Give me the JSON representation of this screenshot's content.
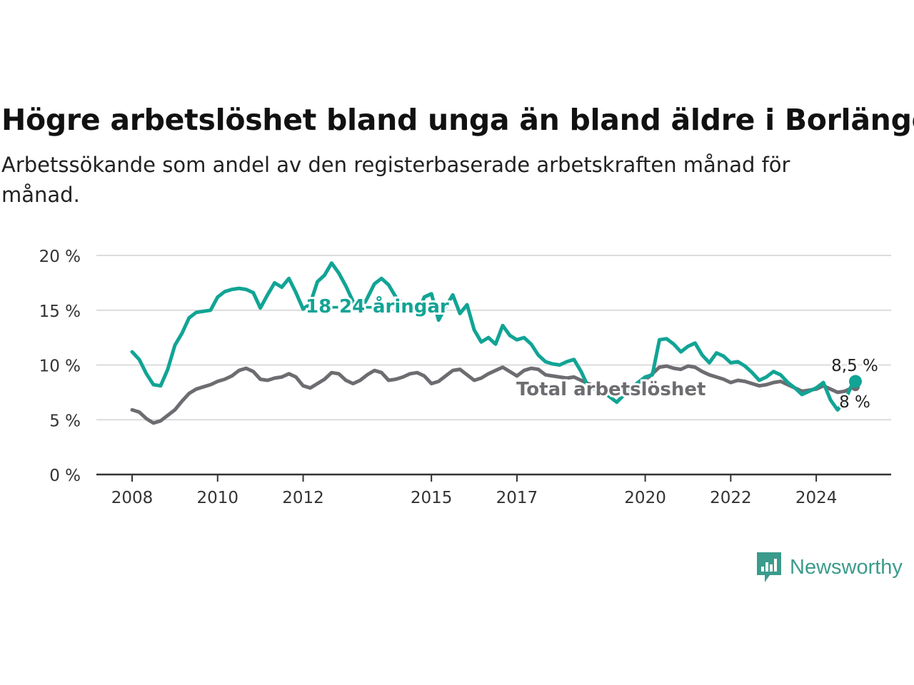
{
  "header": {
    "title": "Högre arbetslöshet bland unga än bland äldre i Borlänge",
    "subtitle": "Arbetssökande som andel av den registerbaserade arbetskraften månad för månad."
  },
  "brand": {
    "name": "Newsworthy",
    "icon": "newsworthy-logo-icon",
    "color": "#3b9b8c"
  },
  "chart_data": {
    "type": "line",
    "title": "Högre arbetslöshet bland unga än bland äldre i Borlänge",
    "subtitle": "Arbetssökande som andel av den registerbaserade arbetskraften månad för månad.",
    "xlabel": "",
    "ylabel": "",
    "x_ticks": [
      "2008",
      "2010",
      "2012",
      "2015",
      "2017",
      "2020",
      "2022",
      "2024"
    ],
    "y_ticks": [
      "0 %",
      "5 %",
      "10 %",
      "15 %",
      "20 %"
    ],
    "ylim": [
      0,
      20
    ],
    "xlim": [
      "2008-01",
      "2024-12"
    ],
    "grid": "horizontal",
    "legend": "none (direct labels)",
    "series": [
      {
        "name": "18-24-åringar",
        "color": "#11a495",
        "end_label": "8,5 %",
        "points": [
          [
            "2008-01",
            11.2
          ],
          [
            "2008-03",
            10.5
          ],
          [
            "2008-05",
            9.2
          ],
          [
            "2008-07",
            8.2
          ],
          [
            "2008-09",
            8.1
          ],
          [
            "2008-11",
            9.6
          ],
          [
            "2009-01",
            11.8
          ],
          [
            "2009-03",
            12.9
          ],
          [
            "2009-05",
            14.3
          ],
          [
            "2009-07",
            14.8
          ],
          [
            "2009-09",
            14.9
          ],
          [
            "2009-11",
            15.0
          ],
          [
            "2010-01",
            16.2
          ],
          [
            "2010-03",
            16.7
          ],
          [
            "2010-05",
            16.9
          ],
          [
            "2010-07",
            17.0
          ],
          [
            "2010-09",
            16.9
          ],
          [
            "2010-11",
            16.6
          ],
          [
            "2011-01",
            15.2
          ],
          [
            "2011-03",
            16.4
          ],
          [
            "2011-05",
            17.5
          ],
          [
            "2011-07",
            17.1
          ],
          [
            "2011-09",
            17.9
          ],
          [
            "2011-11",
            16.6
          ],
          [
            "2012-01",
            15.1
          ],
          [
            "2012-03",
            15.6
          ],
          [
            "2012-05",
            17.6
          ],
          [
            "2012-07",
            18.2
          ],
          [
            "2012-09",
            19.3
          ],
          [
            "2012-11",
            18.4
          ],
          [
            "2013-01",
            17.2
          ],
          [
            "2013-03",
            15.8
          ],
          [
            "2013-05",
            14.9
          ],
          [
            "2013-07",
            16.1
          ],
          [
            "2013-09",
            17.4
          ],
          [
            "2013-11",
            17.9
          ],
          [
            "2014-01",
            17.3
          ],
          [
            "2014-03",
            16.2
          ],
          [
            "2014-05",
            15.6
          ],
          [
            "2014-07",
            15.1
          ],
          [
            "2014-09",
            14.6
          ],
          [
            "2014-11",
            16.2
          ],
          [
            "2015-01",
            16.5
          ],
          [
            "2015-03",
            14.1
          ],
          [
            "2015-05",
            15.3
          ],
          [
            "2015-07",
            16.4
          ],
          [
            "2015-09",
            14.7
          ],
          [
            "2015-11",
            15.5
          ],
          [
            "2016-01",
            13.2
          ],
          [
            "2016-03",
            12.1
          ],
          [
            "2016-05",
            12.5
          ],
          [
            "2016-07",
            11.9
          ],
          [
            "2016-09",
            13.6
          ],
          [
            "2016-11",
            12.7
          ],
          [
            "2017-01",
            12.3
          ],
          [
            "2017-03",
            12.5
          ],
          [
            "2017-05",
            11.9
          ],
          [
            "2017-07",
            10.9
          ],
          [
            "2017-09",
            10.3
          ],
          [
            "2017-11",
            10.1
          ],
          [
            "2018-01",
            10.0
          ],
          [
            "2018-03",
            10.3
          ],
          [
            "2018-05",
            10.5
          ],
          [
            "2018-07",
            9.4
          ],
          [
            "2018-09",
            8.0
          ],
          [
            "2019-01",
            7.6
          ],
          [
            "2019-05",
            6.6
          ],
          [
            "2019-09",
            7.9
          ],
          [
            "2020-01",
            8.9
          ],
          [
            "2020-03",
            9.1
          ],
          [
            "2020-05",
            12.3
          ],
          [
            "2020-07",
            12.4
          ],
          [
            "2020-09",
            11.9
          ],
          [
            "2020-11",
            11.2
          ],
          [
            "2021-01",
            11.7
          ],
          [
            "2021-03",
            12.0
          ],
          [
            "2021-05",
            10.9
          ],
          [
            "2021-07",
            10.2
          ],
          [
            "2021-09",
            11.1
          ],
          [
            "2021-11",
            10.8
          ],
          [
            "2022-01",
            10.2
          ],
          [
            "2022-03",
            10.3
          ],
          [
            "2022-05",
            9.9
          ],
          [
            "2022-07",
            9.3
          ],
          [
            "2022-09",
            8.6
          ],
          [
            "2022-11",
            8.9
          ],
          [
            "2023-01",
            9.4
          ],
          [
            "2023-03",
            9.1
          ],
          [
            "2023-05",
            8.4
          ],
          [
            "2023-07",
            7.9
          ],
          [
            "2023-09",
            7.3
          ],
          [
            "2023-11",
            7.6
          ],
          [
            "2024-01",
            7.9
          ],
          [
            "2024-03",
            8.4
          ],
          [
            "2024-05",
            6.8
          ],
          [
            "2024-07",
            5.9
          ],
          [
            "2024-09",
            6.7
          ],
          [
            "2024-11",
            8.2
          ],
          [
            "2024-12",
            8.5
          ]
        ]
      },
      {
        "name": "Total arbetslöshet",
        "color": "#6d6c70",
        "end_label": "8 %",
        "points": [
          [
            "2008-01",
            5.9
          ],
          [
            "2008-03",
            5.7
          ],
          [
            "2008-05",
            5.1
          ],
          [
            "2008-07",
            4.7
          ],
          [
            "2008-09",
            4.9
          ],
          [
            "2008-11",
            5.4
          ],
          [
            "2009-01",
            5.9
          ],
          [
            "2009-03",
            6.7
          ],
          [
            "2009-05",
            7.4
          ],
          [
            "2009-07",
            7.8
          ],
          [
            "2009-09",
            8.0
          ],
          [
            "2009-11",
            8.2
          ],
          [
            "2010-01",
            8.5
          ],
          [
            "2010-03",
            8.7
          ],
          [
            "2010-05",
            9.0
          ],
          [
            "2010-07",
            9.5
          ],
          [
            "2010-09",
            9.7
          ],
          [
            "2010-11",
            9.4
          ],
          [
            "2011-01",
            8.7
          ],
          [
            "2011-03",
            8.6
          ],
          [
            "2011-05",
            8.8
          ],
          [
            "2011-07",
            8.9
          ],
          [
            "2011-09",
            9.2
          ],
          [
            "2011-11",
            8.9
          ],
          [
            "2012-01",
            8.1
          ],
          [
            "2012-03",
            7.9
          ],
          [
            "2012-05",
            8.3
          ],
          [
            "2012-07",
            8.7
          ],
          [
            "2012-09",
            9.3
          ],
          [
            "2012-11",
            9.2
          ],
          [
            "2013-01",
            8.6
          ],
          [
            "2013-03",
            8.3
          ],
          [
            "2013-05",
            8.6
          ],
          [
            "2013-07",
            9.1
          ],
          [
            "2013-09",
            9.5
          ],
          [
            "2013-11",
            9.3
          ],
          [
            "2014-01",
            8.6
          ],
          [
            "2014-03",
            8.7
          ],
          [
            "2014-05",
            8.9
          ],
          [
            "2014-07",
            9.2
          ],
          [
            "2014-09",
            9.3
          ],
          [
            "2014-11",
            9.0
          ],
          [
            "2015-01",
            8.3
          ],
          [
            "2015-03",
            8.5
          ],
          [
            "2015-05",
            9.0
          ],
          [
            "2015-07",
            9.5
          ],
          [
            "2015-09",
            9.6
          ],
          [
            "2015-11",
            9.1
          ],
          [
            "2016-01",
            8.6
          ],
          [
            "2016-03",
            8.8
          ],
          [
            "2016-05",
            9.2
          ],
          [
            "2016-07",
            9.5
          ],
          [
            "2016-09",
            9.8
          ],
          [
            "2016-11",
            9.4
          ],
          [
            "2017-01",
            9.0
          ],
          [
            "2017-03",
            9.5
          ],
          [
            "2017-05",
            9.7
          ],
          [
            "2017-07",
            9.6
          ],
          [
            "2017-09",
            9.1
          ],
          [
            "2017-11",
            9.0
          ],
          [
            "2018-01",
            8.9
          ],
          [
            "2018-03",
            8.8
          ],
          [
            "2018-05",
            8.9
          ],
          [
            "2018-07",
            8.6
          ],
          [
            "2018-09",
            8.3
          ],
          [
            "2019-01",
            7.8
          ],
          [
            "2019-05",
            7.5
          ],
          [
            "2019-09",
            8.0
          ],
          [
            "2020-01",
            8.6
          ],
          [
            "2020-03",
            9.2
          ],
          [
            "2020-05",
            9.8
          ],
          [
            "2020-07",
            9.9
          ],
          [
            "2020-09",
            9.7
          ],
          [
            "2020-11",
            9.6
          ],
          [
            "2021-01",
            9.9
          ],
          [
            "2021-03",
            9.8
          ],
          [
            "2021-05",
            9.4
          ],
          [
            "2021-07",
            9.1
          ],
          [
            "2021-09",
            8.9
          ],
          [
            "2021-11",
            8.7
          ],
          [
            "2022-01",
            8.4
          ],
          [
            "2022-03",
            8.6
          ],
          [
            "2022-05",
            8.5
          ],
          [
            "2022-07",
            8.3
          ],
          [
            "2022-09",
            8.1
          ],
          [
            "2022-11",
            8.2
          ],
          [
            "2023-01",
            8.4
          ],
          [
            "2023-03",
            8.5
          ],
          [
            "2023-05",
            8.2
          ],
          [
            "2023-07",
            7.9
          ],
          [
            "2023-09",
            7.6
          ],
          [
            "2023-11",
            7.7
          ],
          [
            "2024-01",
            7.8
          ],
          [
            "2024-03",
            8.1
          ],
          [
            "2024-05",
            7.8
          ],
          [
            "2024-07",
            7.5
          ],
          [
            "2024-09",
            7.6
          ],
          [
            "2024-11",
            7.9
          ],
          [
            "2024-12",
            8.0
          ]
        ]
      }
    ]
  }
}
